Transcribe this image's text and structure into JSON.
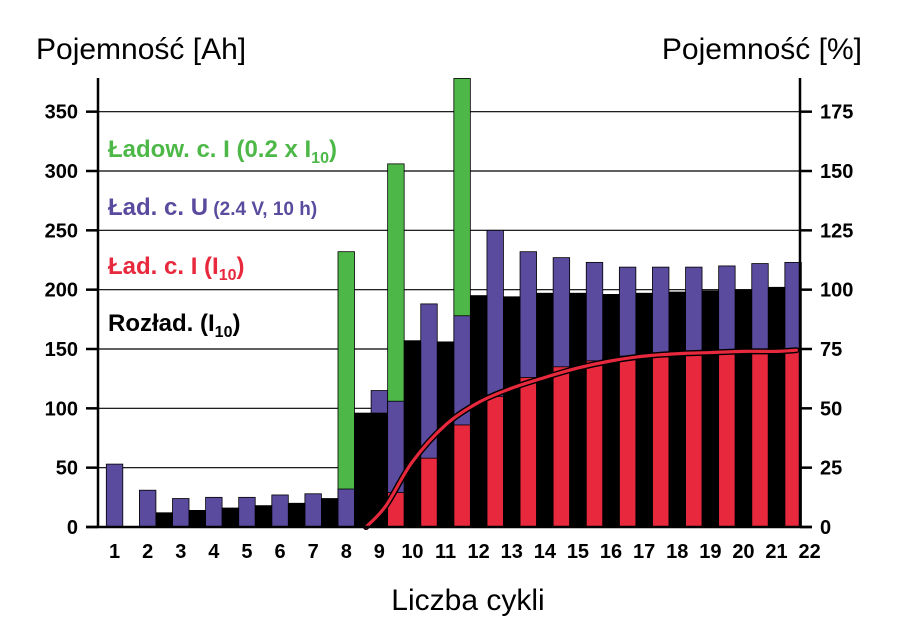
{
  "chart_data": {
    "type": "bar",
    "ylabel_left": "Pojemność  [Ah]",
    "ylabel_right": "Pojemność  [%]",
    "xlabel": "Liczba  cykli",
    "x_ticks": [
      "1",
      "2",
      "3",
      "4",
      "5",
      "6",
      "7",
      "8",
      "9",
      "10",
      "11",
      "12",
      "13",
      "14",
      "15",
      "16",
      "17",
      "18",
      "19",
      "20",
      "21",
      "22"
    ],
    "y_left_ticks": [
      "0",
      "50",
      "100",
      "150",
      "200",
      "250",
      "300",
      "350"
    ],
    "y_right_ticks": [
      "0",
      "25",
      "50",
      "75",
      "100",
      "125",
      "150",
      "175"
    ],
    "ylim_left": [
      0,
      375
    ],
    "ylim_right": [
      0,
      187.5
    ],
    "grid": "horizontal",
    "legend": [
      {
        "id": "green",
        "parts": [
          "Ładow.  c. I  (0.2 x I",
          "10",
          ")"
        ]
      },
      {
        "id": "purple",
        "parts": [
          "Ład.  c.  U",
          "  (2.4 V,  10 h)"
        ]
      },
      {
        "id": "red",
        "parts": [
          "Ład.  c. I (I",
          "10",
          ")"
        ]
      },
      {
        "id": "black",
        "parts": [
          "Rozład. (I",
          "10",
          ")"
        ]
      }
    ],
    "series": [
      {
        "id": "green",
        "color": "#4db848",
        "pos": [
          8,
          9.5,
          11.5
        ],
        "values": [
          232,
          306,
          378
        ]
      },
      {
        "id": "purple",
        "color": "#5b4b9e",
        "pos": [
          1,
          2,
          3,
          4,
          5,
          6,
          7,
          8,
          9,
          9.5,
          10.5,
          11.5,
          12.5,
          13.5,
          14.5,
          15.5,
          16.5,
          17.5,
          18.5,
          19.5,
          20.5,
          21.5
        ],
        "values": [
          53,
          31,
          24,
          25,
          25,
          27,
          28,
          32,
          115,
          106,
          188,
          178,
          250,
          232,
          227,
          223,
          219,
          219,
          219,
          220,
          222,
          223
        ]
      },
      {
        "id": "red",
        "color": "#e8283c",
        "pos": [
          9.5,
          10.5,
          11.5,
          12.5,
          13.5,
          14.5,
          15.5,
          16.5,
          17.5,
          18.5,
          19.5,
          20.5,
          21.5
        ],
        "values": [
          29,
          58,
          86,
          110,
          126,
          135,
          140,
          144,
          146,
          147,
          148,
          148,
          149
        ]
      },
      {
        "id": "black",
        "color": "#000000",
        "pos": [
          2.5,
          3.5,
          4.5,
          5.5,
          6.5,
          7.5,
          8.5,
          9,
          10,
          11,
          12,
          13,
          14,
          15,
          16,
          17,
          18,
          19,
          20,
          21
        ],
        "values": [
          12,
          14,
          16,
          18,
          20,
          24,
          96,
          96,
          157,
          156,
          195,
          194,
          197,
          197,
          196,
          197,
          198,
          199,
          200,
          202
        ]
      }
    ],
    "curve": {
      "color": "#e8283c",
      "x": [
        8.6,
        9.2,
        10,
        11,
        12,
        13,
        14,
        15,
        16,
        17,
        18,
        19,
        20,
        21,
        21.6
      ],
      "y": [
        0,
        18,
        55,
        86,
        105,
        117,
        126,
        134,
        140,
        144,
        146,
        147,
        148,
        148,
        149
      ]
    }
  }
}
